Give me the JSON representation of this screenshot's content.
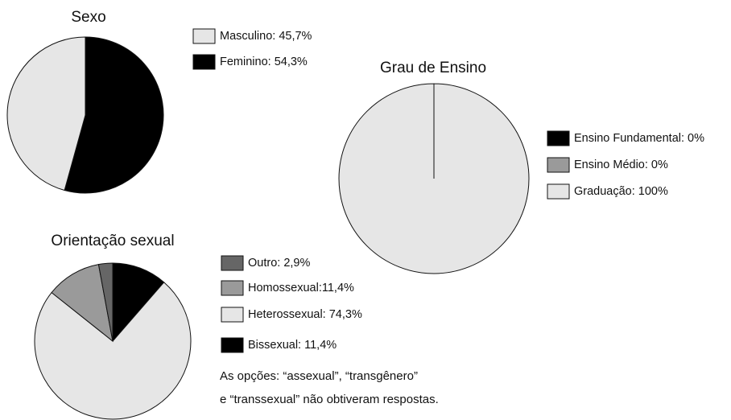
{
  "chart_data": [
    {
      "type": "pie",
      "title": "Sexo",
      "categories": [
        "Masculino: 45,7%",
        "Feminino: 54,3%"
      ],
      "values": [
        45.7,
        54.3
      ],
      "colors": [
        "#e6e6e6",
        "#000000"
      ]
    },
    {
      "type": "pie",
      "title": "Grau de Ensino",
      "categories": [
        "Ensino Fundamental: 0%",
        "Ensino Médio: 0%",
        "Graduação: 100%"
      ],
      "values": [
        0,
        0,
        100
      ],
      "colors": [
        "#000000",
        "#9a9a9a",
        "#e6e6e6"
      ]
    },
    {
      "type": "pie",
      "title": "Orientação sexual",
      "categories": [
        "Outro: 2,9%",
        "Homossexual:11,4%",
        "Heterossexual: 74,3%",
        "Bissexual: 11,4%"
      ],
      "values": [
        2.9,
        11.4,
        74.3,
        11.4
      ],
      "colors": [
        "#666666",
        "#9a9a9a",
        "#e6e6e6",
        "#000000"
      ],
      "annotations": [
        "As opções: “assexual”, “transgênero”",
        "e “transsexual” não obtiveram respostas."
      ]
    }
  ]
}
